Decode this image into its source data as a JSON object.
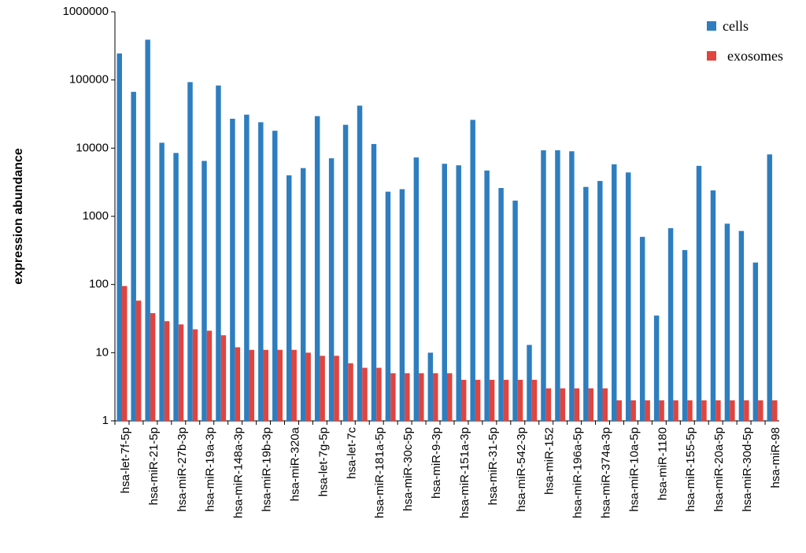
{
  "chart_data": {
    "type": "bar",
    "ylabel": "expression abundance",
    "log_scale": true,
    "grid": false,
    "legend": "upper right",
    "categories": [
      "hsa-let-7f-5p",
      null,
      "hsa-miR-21-5p",
      null,
      "hsa-miR-27b-3p",
      null,
      "hsa-miR-19a-3p",
      null,
      "hsa-miR-148a-3p",
      null,
      "hsa-miR-19b-3p",
      null,
      "hsa-miR-320a",
      null,
      "hsa-let-7g-5p",
      null,
      "hsa-let-7c",
      null,
      "hsa-miR-181a-5p",
      null,
      "hsa-miR-30c-5p",
      null,
      "hsa-miR-9-3p",
      null,
      "hsa-miR-151a-3p",
      null,
      "hsa-miR-31-5p",
      null,
      "hsa-miR-542-3p",
      null,
      "hsa-miR-152",
      null,
      "hsa-miR-196a-5p",
      null,
      "hsa-miR-374a-3p",
      null,
      "hsa-miR-10a-5p",
      null,
      "hsa-miR-1180",
      null,
      "hsa-miR-155-5p",
      null,
      "hsa-miR-20a-5p",
      null,
      "hsa-miR-30d-5p",
      null,
      "hsa-miR-98"
    ],
    "series": [
      {
        "name": "cells",
        "color": "#2e7ebf",
        "values": [
          245000,
          67000,
          390000,
          12000,
          8500,
          93000,
          6500,
          83000,
          27000,
          31000,
          24000,
          18000,
          4000,
          5100,
          29500,
          7100,
          22000,
          42000,
          11500,
          2300,
          2500,
          7300,
          10,
          5900,
          5600,
          26000,
          4700,
          2600,
          1700,
          13,
          9300,
          9300,
          9000,
          2700,
          3300,
          5800,
          4400,
          500,
          35,
          670,
          320,
          5500,
          2400,
          780,
          610,
          210,
          8100
        ]
      },
      {
        "name": "exosomes",
        "color": "#e0443f",
        "values": [
          95,
          58,
          38,
          29,
          26,
          22,
          21,
          18,
          12,
          11,
          11,
          11,
          11,
          10,
          9,
          9,
          7,
          6,
          6,
          5,
          5,
          5,
          5,
          5,
          4,
          4,
          4,
          4,
          4,
          4,
          3,
          3,
          3,
          3,
          3,
          2,
          2,
          2,
          2,
          2,
          2,
          2,
          2,
          2,
          2,
          2,
          2
        ]
      }
    ],
    "ylim": [
      1,
      1000000
    ],
    "yticks": [
      1,
      10,
      100,
      1000,
      10000,
      100000,
      1000000
    ]
  }
}
